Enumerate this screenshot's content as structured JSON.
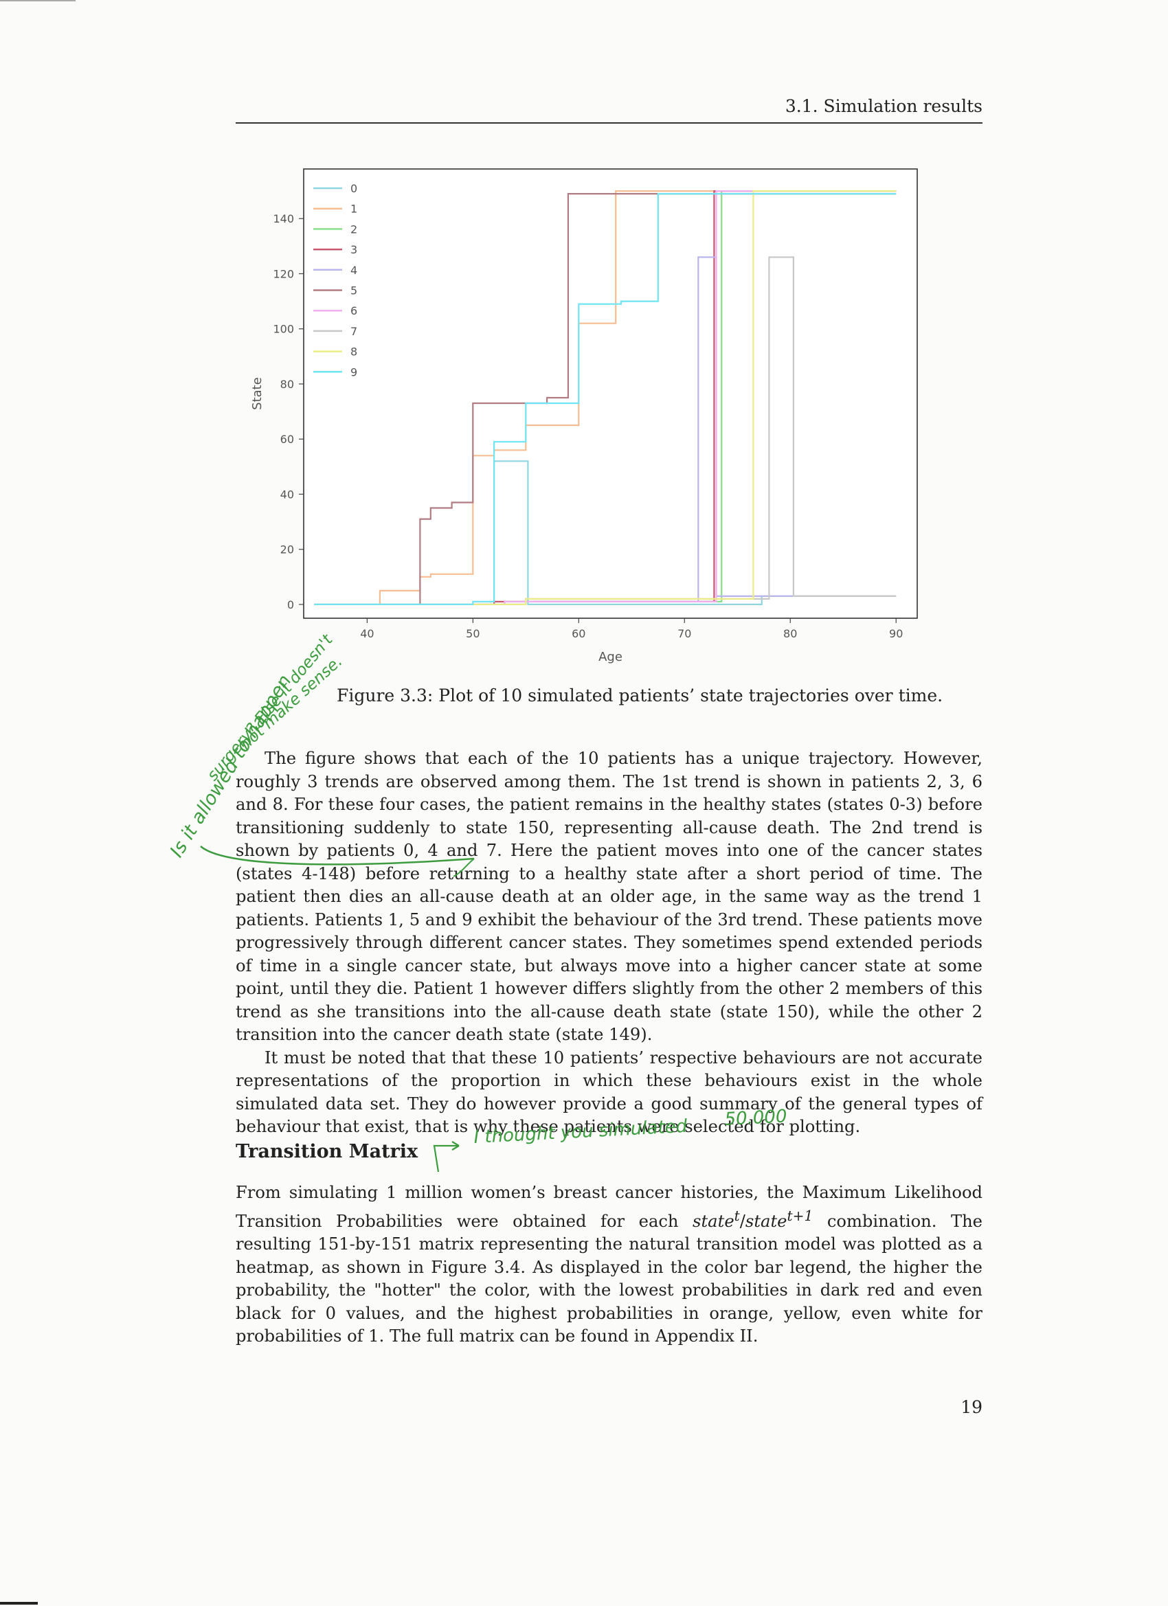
{
  "header": {
    "running_head": "3.1. Simulation results"
  },
  "figure": {
    "caption": "Figure 3.3: Plot of 10 simulated patients’ state trajectories over time."
  },
  "chart_data": {
    "type": "line",
    "title": "",
    "xlabel": "Age",
    "ylabel": "State",
    "xlim": [
      34,
      92
    ],
    "ylim": [
      -5,
      158
    ],
    "xticks": [
      40,
      50,
      60,
      70,
      80,
      90
    ],
    "yticks": [
      0,
      20,
      40,
      60,
      80,
      100,
      120,
      140
    ],
    "grid": false,
    "legend": "top-left",
    "series": [
      {
        "name": "0",
        "color": "#8fd6e3",
        "x": [
          35,
          52,
          52,
          55.2,
          55.2,
          77.3,
          77.3,
          90
        ],
        "y": [
          0,
          0,
          52,
          52,
          0,
          0,
          3,
          3
        ]
      },
      {
        "name": "1",
        "color": "#f6bd92",
        "x": [
          35,
          41.2,
          41.2,
          45,
          45,
          46,
          46,
          50,
          50,
          52,
          52,
          55,
          55,
          60,
          60,
          63.5,
          63.5,
          90
        ],
        "y": [
          0,
          0,
          5,
          5,
          10,
          10,
          11,
          11,
          54,
          54,
          56,
          56,
          65,
          65,
          102,
          102,
          150,
          150
        ]
      },
      {
        "name": "2",
        "color": "#8adf8a",
        "x": [
          35,
          53,
          53,
          73.5,
          73.5,
          90
        ],
        "y": [
          0,
          0,
          1,
          1,
          150,
          150
        ]
      },
      {
        "name": "3",
        "color": "#c8566e",
        "x": [
          35,
          52,
          52,
          72.8,
          72.8,
          90
        ],
        "y": [
          0,
          0,
          1,
          1,
          150,
          150
        ]
      },
      {
        "name": "4",
        "color": "#b9b5ec",
        "x": [
          35,
          55,
          55,
          71.3,
          71.3,
          73,
          73,
          90
        ],
        "y": [
          0,
          0,
          1,
          1,
          126,
          126,
          3,
          3
        ]
      },
      {
        "name": "5",
        "color": "#b07c82",
        "x": [
          35,
          45,
          45,
          46,
          46,
          48,
          48,
          50,
          50,
          57,
          57,
          59,
          59,
          90
        ],
        "y": [
          0,
          0,
          31,
          31,
          35,
          35,
          37,
          37,
          73,
          73,
          75,
          75,
          149,
          149
        ]
      },
      {
        "name": "6",
        "color": "#efb0ec",
        "x": [
          35,
          53,
          53,
          73,
          73,
          90
        ],
        "y": [
          0,
          0,
          1,
          1,
          150,
          150
        ]
      },
      {
        "name": "7",
        "color": "#c8c8c8",
        "x": [
          35,
          55,
          55,
          78,
          78,
          80.3,
          80.3,
          90
        ],
        "y": [
          0,
          0,
          2,
          2,
          126,
          126,
          3,
          3
        ]
      },
      {
        "name": "8",
        "color": "#ecec86",
        "x": [
          35,
          55,
          55,
          76.5,
          76.5,
          90
        ],
        "y": [
          0,
          0,
          2,
          2,
          150,
          150
        ]
      },
      {
        "name": "9",
        "color": "#6fe4f2",
        "x": [
          35,
          50,
          50,
          52,
          52,
          55,
          55,
          60,
          60,
          64,
          64,
          67.5,
          67.5,
          90
        ],
        "y": [
          0,
          0,
          1,
          1,
          59,
          59,
          73,
          73,
          109,
          109,
          110,
          110,
          149,
          149
        ]
      }
    ]
  },
  "body": {
    "para1": "The figure shows that each of the 10 patients has a unique trajectory. However, roughly 3 trends are observed among them. The 1st trend is shown in patients 2, 3, 6 and 8. For these four cases, the patient remains in the healthy states (states 0-3) before transitioning suddenly to state 150, representing all-cause death. The 2nd trend is shown by patients 0, 4 and 7. Here the patient moves into one of the cancer states (states 4-148) before returning to a healthy state after a short period of time. The patient then dies an all-cause death at an older age, in the same way as the trend 1 patients. Patients 1, 5 and 9 exhibit the behaviour of the 3rd trend. These patients move progressively through different cancer states. They sometimes spend extended periods of time in a single cancer state, but always move into a higher cancer state at some point, until they die. Patient 1 however differs slightly from the other 2 members of this trend as she transitions into the all-cause death state (state 150), while the other 2 transition into the cancer death state (state 149).",
    "para2": "It must be noted that that these 10 patients’ respective behaviours are not accurate representations of the proportion in which these behaviours exist in the whole simulated data set. They do however provide a good summary of the general types of behaviour that exist, that is why these patients were selected for plotting."
  },
  "section": {
    "title": "Transition Matrix",
    "para_a": "From simulating 1 million women’s breast cancer histories, the Maximum Likelihood Transition Probabilities were obtained for each ",
    "state_t": "state",
    "sup_t": "t",
    "slash": "/",
    "state_t1": "state",
    "sup_t1": "t+1",
    "para_b": " combination. The resulting 151-by-151 matrix representing the natural transition model was plotted as a heatmap, as shown in Figure 3.4. As displayed in the color bar legend, the higher the probability, the \"hotter\" the color, with the lowest probabilities in dark red and even black for 0 values, and the highest probabilities in orange, yellow, even white for probabilities of 1. The full matrix can be found in Appendix II."
  },
  "annotations": {
    "margin_note_1": "Is it allowed to happen",
    "margin_note_2": "surgery? Else it doesn't",
    "margin_note_3": "not make sense.",
    "top_note": "I thought you simulated",
    "top_note_number": "50.000"
  },
  "footer": {
    "page_number": "19"
  }
}
